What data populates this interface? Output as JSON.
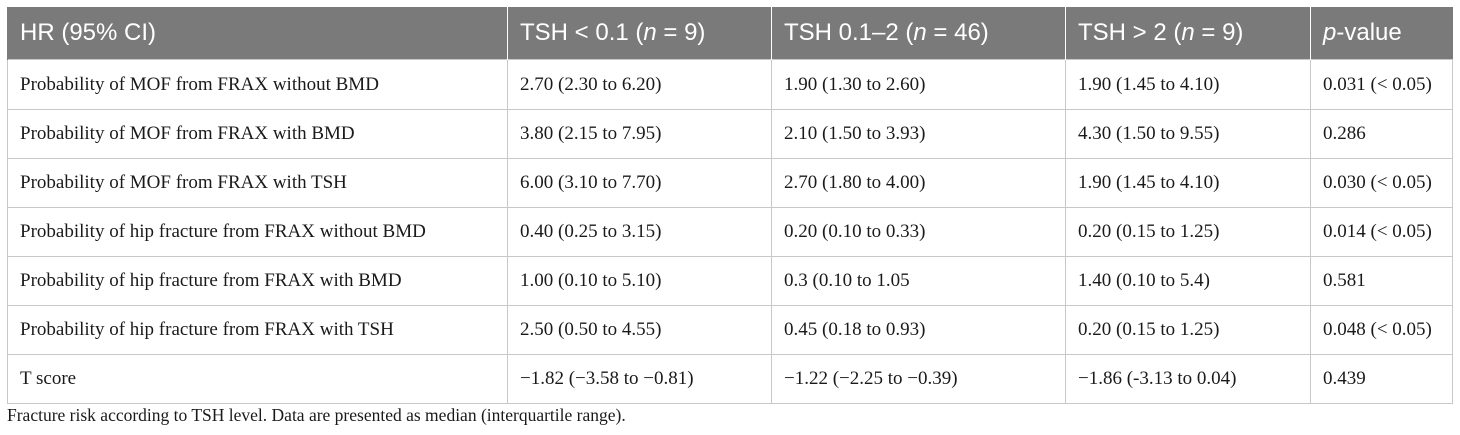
{
  "table": {
    "headers": [
      {
        "pre": "HR (95% CI)",
        "ital": "",
        "post": ""
      },
      {
        "pre": "TSH < 0.1 (",
        "ital": "n",
        "post": " = 9)"
      },
      {
        "pre": "TSH 0.1–2 (",
        "ital": "n",
        "post": " = 46)"
      },
      {
        "pre": "TSH > 2 (",
        "ital": "n",
        "post": " = 9)"
      },
      {
        "pre": "",
        "ital": "p",
        "post": "-value"
      }
    ],
    "rows": [
      [
        "Probability of MOF from FRAX without BMD",
        "2.70 (2.30 to 6.20)",
        "1.90 (1.30 to 2.60)",
        "1.90 (1.45 to 4.10)",
        "0.031 (< 0.05)"
      ],
      [
        "Probability of MOF from FRAX with BMD",
        "3.80 (2.15 to 7.95)",
        "2.10 (1.50 to 3.93)",
        "4.30 (1.50 to 9.55)",
        "0.286"
      ],
      [
        "Probability of MOF from FRAX with TSH",
        "6.00 (3.10 to 7.70)",
        "2.70 (1.80 to 4.00)",
        "1.90 (1.45 to 4.10)",
        "0.030 (< 0.05)"
      ],
      [
        "Probability of hip fracture from FRAX without BMD",
        "0.40 (0.25 to 3.15)",
        "0.20 (0.10 to 0.33)",
        "0.20 (0.15 to 1.25)",
        "0.014 (< 0.05)"
      ],
      [
        "Probability of hip fracture from FRAX with BMD",
        "1.00 (0.10 to 5.10)",
        "0.3 (0.10 to 1.05",
        "1.40 (0.10 to 5.4)",
        "0.581"
      ],
      [
        "Probability of hip fracture from FRAX with TSH",
        "2.50 (0.50 to 4.55)",
        "0.45 (0.18 to 0.93)",
        "0.20 (0.15 to 1.25)",
        "0.048 (< 0.05)"
      ],
      [
        "T score",
        "−1.82 (−3.58 to −0.81)",
        "−1.22 (−2.25 to −0.39)",
        "−1.86 (-3.13 to 0.04)",
        "0.439"
      ]
    ]
  },
  "caption": "Fracture risk according to TSH level. Data are presented as median (interquartile range).",
  "colors": {
    "header_bg": "#7a7a7a",
    "header_text": "#ffffff",
    "border": "#c8c8c8"
  }
}
